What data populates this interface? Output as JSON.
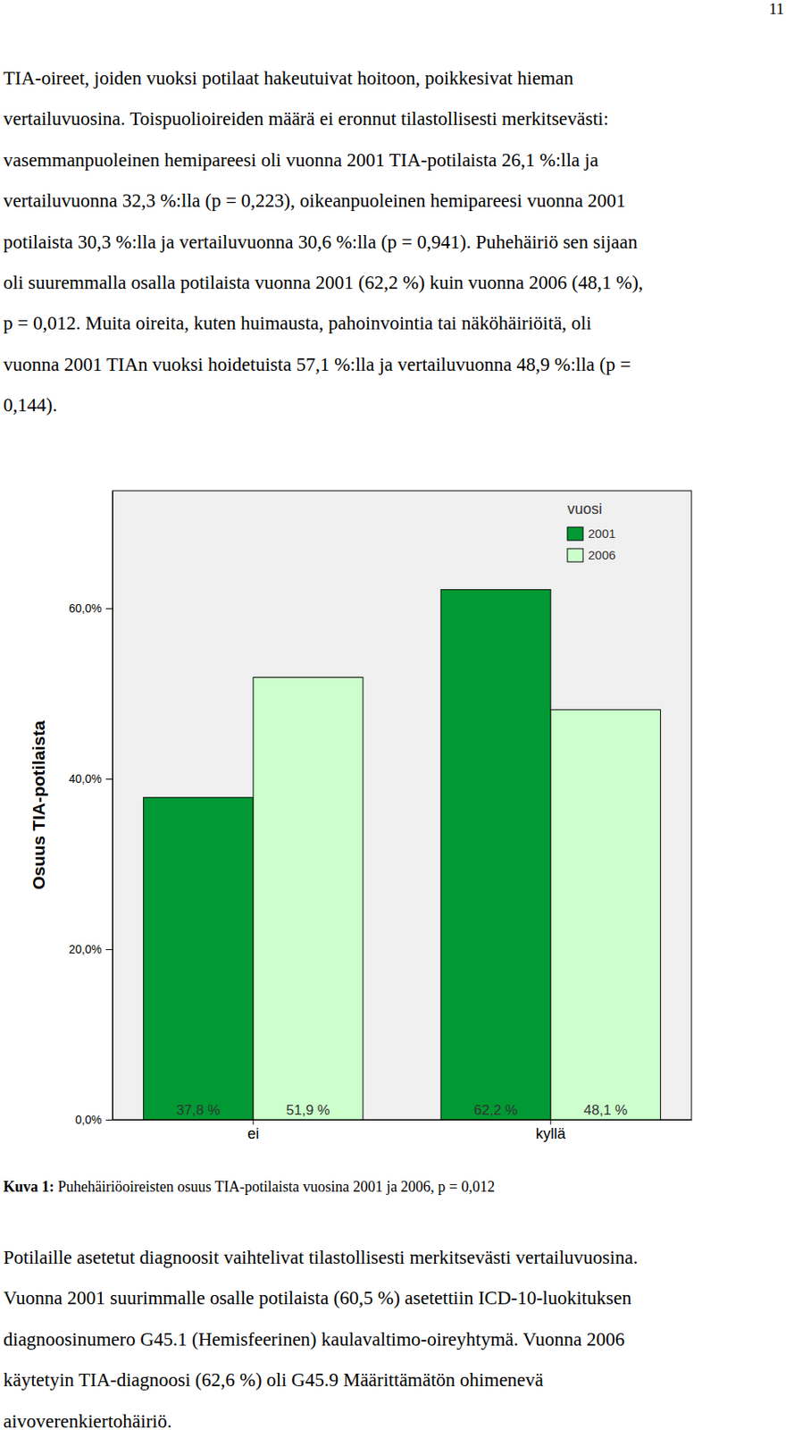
{
  "page_number": "11",
  "body_before": {
    "lines": [
      "TIA-oireet, joiden vuoksi potilaat hakeutuivat hoitoon, poikkesivat hieman",
      "vertailuvuosina. Toispuolioireiden määrä ei eronnut tilastollisesti merkitsevästi:",
      "vasemmanpuoleinen hemipareesi oli vuonna 2001 TIA-potilaista 26,1 %:lla ja",
      "vertailuvuonna 32,3 %:lla (p = 0,223), oikeanpuoleinen hemipareesi vuonna 2001",
      "potilaista 30,3 %:lla ja vertailuvuonna 30,6 %:lla (p = 0,941). Puhehäiriö sen sijaan",
      "oli suuremmalla osalla potilaista vuonna 2001 (62,2 %) kuin vuonna 2006 (48,1 %),",
      "p = 0,012. Muita oireita, kuten huimausta, pahoinvointia tai näköhäiriöitä, oli",
      "vuonna 2001 TIAn vuoksi hoidetuista 57,1 %:lla ja vertailuvuonna 48,9 %:lla (p =",
      "0,144)."
    ]
  },
  "chart_data": {
    "type": "bar",
    "y_label": "Osuus TIA-potilaista",
    "categories": [
      "ei",
      "kyllä"
    ],
    "series": [
      {
        "name": "2001",
        "color": "#009933",
        "values": [
          37.8,
          62.2
        ],
        "value_labels": [
          "37,8 %",
          "62,2 %"
        ]
      },
      {
        "name": "2006",
        "color": "#ccffcc",
        "values": [
          51.9,
          48.1
        ],
        "value_labels": [
          "51,9 %",
          "48,1 %"
        ]
      }
    ],
    "ylim": [
      0,
      73.8
    ],
    "yticks": [
      {
        "value": 0,
        "label": "0,0%"
      },
      {
        "value": 20,
        "label": "20,0%"
      },
      {
        "value": 40,
        "label": "40,0%"
      },
      {
        "value": 60,
        "label": "60,0%"
      }
    ],
    "grid": false,
    "legend": "top-right",
    "legend_title": "vuosi",
    "data_labels": true
  },
  "caption": {
    "label": "Kuva 1:",
    "text": "Puhehäiriöoireisten osuus TIA-potilaista vuosina 2001 ja 2006, p = 0,012"
  },
  "body_after": {
    "lines": [
      "Potilaille asetetut diagnoosit vaihtelivat tilastollisesti merkitsevästi vertailuvuosina.",
      "Vuonna 2001 suurimmalle osalle potilaista (60,5 %) asetettiin ICD-10-luokituksen",
      "diagnoosinumero G45.1 (Hemisfeerinen) kaulavaltimo-oireyhtymä. Vuonna 2006",
      "käytetyin TIA-diagnoosi (62,6 %) oli G45.9 Määrittämätön ohimenevä",
      "aivoverenkiertohäiriö."
    ]
  }
}
